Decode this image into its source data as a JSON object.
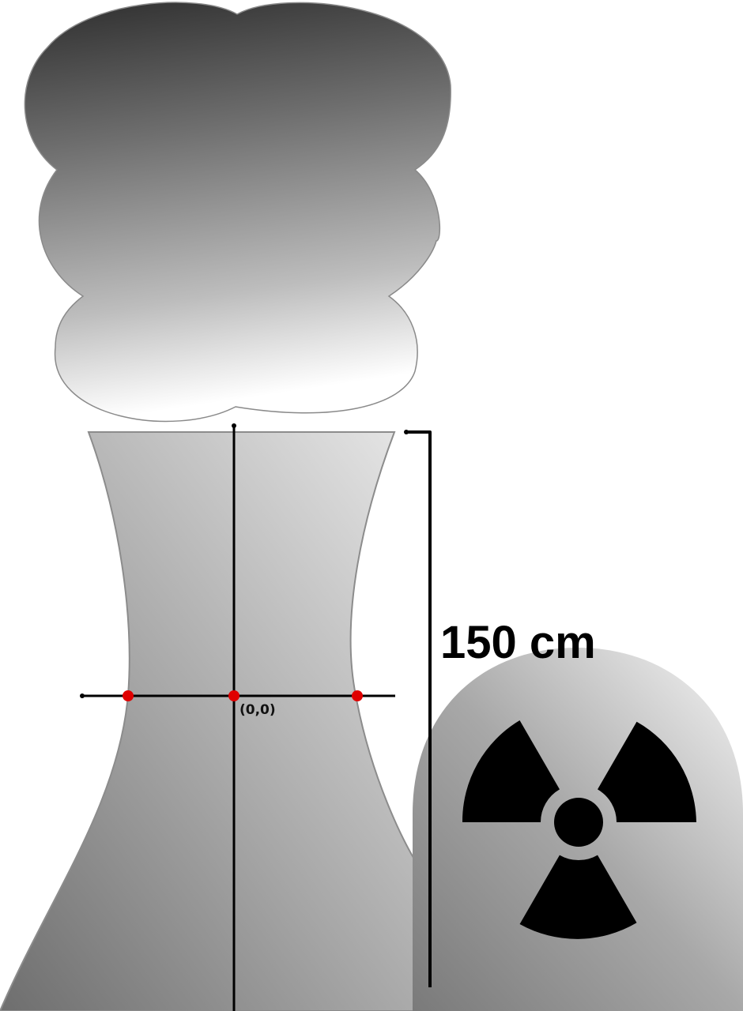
{
  "diagram": {
    "height_label": "150 cm",
    "origin_label": "(0,0)"
  },
  "icons": {
    "smoke": "cloud-icon",
    "tower": "cooling-tower-icon",
    "reactor": "radiation-icon"
  },
  "colors": {
    "axis": "#000000",
    "marker": "#e00000",
    "smoke_dark": "#303030",
    "smoke_light": "#ffffff",
    "tower_light": "#e6e6e6",
    "tower_dark": "#7a7a7a",
    "reactor_light": "#f2f2f2",
    "reactor_dark": "#808080",
    "symbol": "#000000"
  }
}
